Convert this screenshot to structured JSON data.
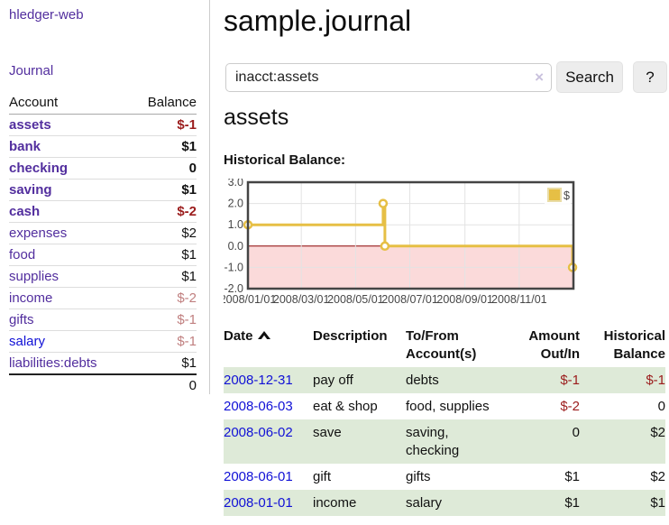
{
  "app": {
    "brand": "hledger-web"
  },
  "sidebar": {
    "journal_link": "Journal",
    "accounts_table": {
      "account_header": "Account",
      "balance_header": "Balance",
      "accounts": [
        {
          "name": "assets",
          "balance": "$-1"
        },
        {
          "name": "bank",
          "balance": "$1"
        },
        {
          "name": "checking",
          "balance": "0"
        },
        {
          "name": "saving",
          "balance": "$1"
        },
        {
          "name": "cash",
          "balance": "$-2"
        },
        {
          "name": "expenses",
          "balance": "$2"
        },
        {
          "name": "food",
          "balance": "$1"
        },
        {
          "name": "supplies",
          "balance": "$1"
        },
        {
          "name": "income",
          "balance": "$-2"
        },
        {
          "name": "gifts",
          "balance": "$-1"
        },
        {
          "name": "salary",
          "balance": "$-1"
        },
        {
          "name": "liabilities:debts",
          "balance": "$1"
        }
      ],
      "total": "0"
    }
  },
  "main": {
    "title": "sample.journal",
    "search": {
      "value": "inacct:assets",
      "clear_icon": "×",
      "search_button": "Search",
      "help_button": "?"
    },
    "account_heading": "assets",
    "chart_title": "Historical Balance:",
    "register": {
      "headers": {
        "date": "Date",
        "description": "Description",
        "tofrom": "To/From\nAccount(s)",
        "amount": "Amount\nOut/In",
        "balance": "Historical\nBalance"
      },
      "rows": [
        {
          "date": "2008-12-31",
          "description": "pay off",
          "tofrom": "debts",
          "amount": "$-1",
          "balance": "$-1"
        },
        {
          "date": "2008-06-03",
          "description": "eat & shop",
          "tofrom": "food, supplies",
          "amount": "$-2",
          "balance": "0"
        },
        {
          "date": "2008-06-02",
          "description": "save",
          "tofrom": "saving,\nchecking",
          "amount": "0",
          "balance": "$2"
        },
        {
          "date": "2008-06-01",
          "description": "gift",
          "tofrom": "gifts",
          "amount": "$1",
          "balance": "$2"
        },
        {
          "date": "2008-01-01",
          "description": "income",
          "tofrom": "salary",
          "amount": "$1",
          "balance": "$1"
        }
      ]
    }
  },
  "chart_data": {
    "type": "line",
    "step": true,
    "title": "Historical Balance:",
    "series": [
      {
        "name": "$",
        "color": "#e6bf45",
        "points": [
          [
            "2008-01-01",
            1
          ],
          [
            "2008-06-01",
            2
          ],
          [
            "2008-06-03",
            0
          ],
          [
            "2008-12-31",
            -1
          ]
        ]
      }
    ],
    "ylim": [
      -2,
      3
    ],
    "yticks": [
      -2,
      -1,
      0,
      1,
      2,
      3
    ],
    "xticks": [
      "2008/01/01",
      "2008/03/01",
      "2008/05/01",
      "2008/07/01",
      "2008/09/01",
      "2008/11/01"
    ],
    "x_range": [
      "2008-01-01",
      "2009-01-01"
    ],
    "legend": {
      "label": "$",
      "position": "top-right"
    },
    "grid": true,
    "negative_region_color": "#fbdada",
    "zero_line_color": "#8b0000"
  },
  "colors": {
    "link_purple": "#522e9e",
    "link_blue": "#1111d6",
    "negative": "#9b1c1c",
    "negative_soft": "#c07f7f",
    "row_highlight": "#deead8",
    "series_gold": "#e6bf45",
    "chart_border": "#444444"
  }
}
